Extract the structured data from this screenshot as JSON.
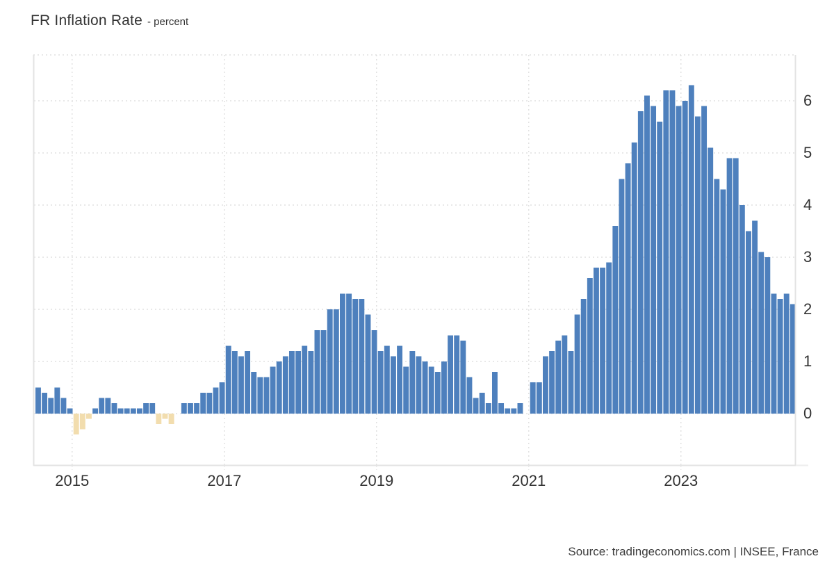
{
  "header": {
    "title": "FR Inflation Rate",
    "subtitle": "- percent"
  },
  "footer": {
    "source": "Source: tradingeconomics.com | INSEE, France"
  },
  "chart_data": {
    "type": "bar",
    "title": "FR Inflation Rate",
    "ylabel": "percent",
    "frequency": "monthly",
    "start": "2014-07",
    "end": "2024-06",
    "y_axis_side": "right",
    "grid": "dotted",
    "legend": "none",
    "ylim": [
      -1.0,
      6.9
    ],
    "y_ticks": [
      0,
      1,
      2,
      3,
      4,
      5,
      6
    ],
    "y_tick_labels": [
      "0",
      "1",
      "2",
      "3",
      "4",
      "5",
      "6"
    ],
    "x_tick_labels": [
      "2015",
      "2017",
      "2019",
      "2021",
      "2023"
    ],
    "series": [
      {
        "name": "FR Inflation Rate",
        "values": [
          0.5,
          0.4,
          0.3,
          0.5,
          0.3,
          0.1,
          -0.4,
          -0.3,
          -0.1,
          0.1,
          0.3,
          0.3,
          0.2,
          0.1,
          0.1,
          0.1,
          0.1,
          0.2,
          0.2,
          -0.2,
          -0.1,
          -0.2,
          0.0,
          0.2,
          0.2,
          0.2,
          0.4,
          0.4,
          0.5,
          0.6,
          1.3,
          1.2,
          1.1,
          1.2,
          0.8,
          0.7,
          0.7,
          0.9,
          1.0,
          1.1,
          1.2,
          1.2,
          1.3,
          1.2,
          1.6,
          1.6,
          2.0,
          2.0,
          2.3,
          2.3,
          2.2,
          2.2,
          1.9,
          1.6,
          1.2,
          1.3,
          1.1,
          1.3,
          0.9,
          1.2,
          1.1,
          1.0,
          0.9,
          0.8,
          1.0,
          1.5,
          1.5,
          1.4,
          0.7,
          0.3,
          0.4,
          0.2,
          0.8,
          0.2,
          0.1,
          0.1,
          0.2,
          0.0,
          0.6,
          0.6,
          1.1,
          1.2,
          1.4,
          1.5,
          1.2,
          1.9,
          2.2,
          2.6,
          2.8,
          2.8,
          2.9,
          3.6,
          4.5,
          4.8,
          5.2,
          5.8,
          6.1,
          5.9,
          5.6,
          6.2,
          6.2,
          5.9,
          6.0,
          6.3,
          5.7,
          5.9,
          5.1,
          4.5,
          4.3,
          4.9,
          4.9,
          4.0,
          3.5,
          3.7,
          3.1,
          3.0,
          2.3,
          2.2,
          2.3,
          2.1
        ]
      }
    ],
    "colors": {
      "positive_bar": "#4e80bd",
      "negative_bar": "#f2ddae",
      "grid": "#e1e1e1",
      "axis_border": "#e3e3e3",
      "text": "#333333"
    }
  }
}
